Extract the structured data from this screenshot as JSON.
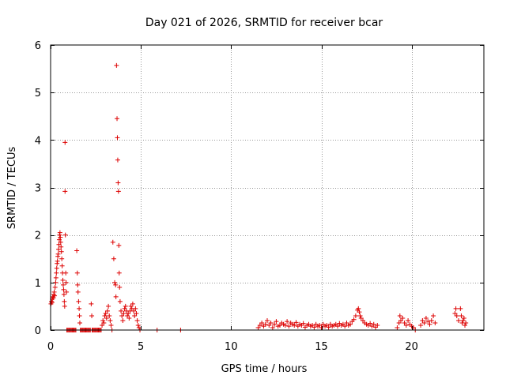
{
  "chart_data": {
    "type": "scatter",
    "title": "Day 021 of 2026, SRMTID for receiver bcar",
    "xlabel": "GPS time / hours",
    "ylabel": "SRMTID / TECUs",
    "xlim": [
      0,
      24
    ],
    "ylim": [
      0,
      6
    ],
    "xticks": [
      0,
      5,
      10,
      15,
      20
    ],
    "yticks": [
      0,
      1,
      2,
      3,
      4,
      5,
      6
    ],
    "grid": true,
    "marker": "+",
    "colors": {
      "series": "#dd0000",
      "grid": "#999999",
      "axis": "#000000"
    },
    "series": [
      {
        "name": "SRMTID",
        "points": [
          [
            0.02,
            0.55
          ],
          [
            0.05,
            0.6
          ],
          [
            0.08,
            0.58
          ],
          [
            0.1,
            0.65
          ],
          [
            0.12,
            0.7
          ],
          [
            0.15,
            0.68
          ],
          [
            0.18,
            0.75
          ],
          [
            0.2,
            0.8
          ],
          [
            0.22,
            0.72
          ],
          [
            0.25,
            0.9
          ],
          [
            0.28,
            1.0
          ],
          [
            0.3,
            1.1
          ],
          [
            0.32,
            1.2
          ],
          [
            0.34,
            1.3
          ],
          [
            0.36,
            1.4
          ],
          [
            0.38,
            1.45
          ],
          [
            0.4,
            1.55
          ],
          [
            0.42,
            1.6
          ],
          [
            0.44,
            1.7
          ],
          [
            0.46,
            1.8
          ],
          [
            0.48,
            1.9
          ],
          [
            0.5,
            2.0
          ],
          [
            0.52,
            2.05
          ],
          [
            0.54,
            1.95
          ],
          [
            0.56,
            1.85
          ],
          [
            0.58,
            1.75
          ],
          [
            0.6,
            1.65
          ],
          [
            0.62,
            1.5
          ],
          [
            0.64,
            1.35
          ],
          [
            0.66,
            1.2
          ],
          [
            0.68,
            1.05
          ],
          [
            0.7,
            0.95
          ],
          [
            0.72,
            0.85
          ],
          [
            0.74,
            0.75
          ],
          [
            0.76,
            0.6
          ],
          [
            0.78,
            0.5
          ],
          [
            0.8,
            3.95
          ],
          [
            0.8,
            2.92
          ],
          [
            0.82,
            2.0
          ],
          [
            0.84,
            1.2
          ],
          [
            0.86,
            1.0
          ],
          [
            0.88,
            0.8
          ],
          [
            0.9,
            0.0
          ],
          [
            0.95,
            0.0
          ],
          [
            1.0,
            0.0
          ],
          [
            1.05,
            0.0
          ],
          [
            1.1,
            0.0
          ],
          [
            1.15,
            0.0
          ],
          [
            1.2,
            0.0
          ],
          [
            1.25,
            0.0
          ],
          [
            1.3,
            0.0
          ],
          [
            1.35,
            0.0
          ],
          [
            1.4,
            0.0
          ],
          [
            1.45,
            1.67
          ],
          [
            1.48,
            1.2
          ],
          [
            1.5,
            0.95
          ],
          [
            1.52,
            0.8
          ],
          [
            1.55,
            0.6
          ],
          [
            1.58,
            0.45
          ],
          [
            1.6,
            0.3
          ],
          [
            1.62,
            0.15
          ],
          [
            1.65,
            0.0
          ],
          [
            1.7,
            0.0
          ],
          [
            1.75,
            0.0
          ],
          [
            1.8,
            0.0
          ],
          [
            1.85,
            0.0
          ],
          [
            1.9,
            0.0
          ],
          [
            1.95,
            0.0
          ],
          [
            2.0,
            0.0
          ],
          [
            2.05,
            0.0
          ],
          [
            2.1,
            0.0
          ],
          [
            2.15,
            0.0
          ],
          [
            2.2,
            0.0
          ],
          [
            2.25,
            0.55
          ],
          [
            2.28,
            0.3
          ],
          [
            2.3,
            0.0
          ],
          [
            2.35,
            0.0
          ],
          [
            2.4,
            0.0
          ],
          [
            2.45,
            0.0
          ],
          [
            2.5,
            0.0
          ],
          [
            2.55,
            0.0
          ],
          [
            2.6,
            0.0
          ],
          [
            2.65,
            0.0
          ],
          [
            2.7,
            0.0
          ],
          [
            2.75,
            0.0
          ],
          [
            2.8,
            0.0
          ],
          [
            2.85,
            0.1
          ],
          [
            2.9,
            0.2
          ],
          [
            2.95,
            0.15
          ],
          [
            3.0,
            0.3
          ],
          [
            3.05,
            0.35
          ],
          [
            3.1,
            0.25
          ],
          [
            3.15,
            0.4
          ],
          [
            3.2,
            0.5
          ],
          [
            3.25,
            0.3
          ],
          [
            3.3,
            0.2
          ],
          [
            3.35,
            0.1
          ],
          [
            3.4,
            0.0
          ],
          [
            3.45,
            1.85
          ],
          [
            3.5,
            1.5
          ],
          [
            3.55,
            1.0
          ],
          [
            3.6,
            0.95
          ],
          [
            3.62,
            0.7
          ],
          [
            3.65,
            5.57
          ],
          [
            3.68,
            4.45
          ],
          [
            3.7,
            4.05
          ],
          [
            3.72,
            3.58
          ],
          [
            3.74,
            3.1
          ],
          [
            3.76,
            2.92
          ],
          [
            3.78,
            1.78
          ],
          [
            3.8,
            1.2
          ],
          [
            3.82,
            0.9
          ],
          [
            3.85,
            0.6
          ],
          [
            3.9,
            0.4
          ],
          [
            3.95,
            0.3
          ],
          [
            4.0,
            0.2
          ],
          [
            4.05,
            0.35
          ],
          [
            4.1,
            0.45
          ],
          [
            4.15,
            0.5
          ],
          [
            4.2,
            0.4
          ],
          [
            4.25,
            0.3
          ],
          [
            4.3,
            0.35
          ],
          [
            4.35,
            0.25
          ],
          [
            4.4,
            0.4
          ],
          [
            4.45,
            0.5
          ],
          [
            4.5,
            0.45
          ],
          [
            4.55,
            0.55
          ],
          [
            4.6,
            0.4
          ],
          [
            4.65,
            0.3
          ],
          [
            4.7,
            0.45
          ],
          [
            4.75,
            0.35
          ],
          [
            4.8,
            0.2
          ],
          [
            4.85,
            0.1
          ],
          [
            4.9,
            0.05
          ],
          [
            4.95,
            0.0
          ],
          [
            5.9,
            0.0
          ],
          [
            7.2,
            0.0
          ],
          [
            11.5,
            0.05
          ],
          [
            11.6,
            0.1
          ],
          [
            11.7,
            0.15
          ],
          [
            11.8,
            0.08
          ],
          [
            11.9,
            0.12
          ],
          [
            12.0,
            0.2
          ],
          [
            12.1,
            0.1
          ],
          [
            12.2,
            0.15
          ],
          [
            12.3,
            0.05
          ],
          [
            12.4,
            0.12
          ],
          [
            12.5,
            0.18
          ],
          [
            12.6,
            0.08
          ],
          [
            12.7,
            0.1
          ],
          [
            12.8,
            0.15
          ],
          [
            12.9,
            0.12
          ],
          [
            13.0,
            0.1
          ],
          [
            13.1,
            0.18
          ],
          [
            13.2,
            0.08
          ],
          [
            13.3,
            0.15
          ],
          [
            13.4,
            0.12
          ],
          [
            13.5,
            0.1
          ],
          [
            13.6,
            0.16
          ],
          [
            13.7,
            0.08
          ],
          [
            13.8,
            0.12
          ],
          [
            13.9,
            0.1
          ],
          [
            14.0,
            0.14
          ],
          [
            14.1,
            0.06
          ],
          [
            14.2,
            0.1
          ],
          [
            14.3,
            0.12
          ],
          [
            14.4,
            0.08
          ],
          [
            14.5,
            0.1
          ],
          [
            14.6,
            0.06
          ],
          [
            14.7,
            0.12
          ],
          [
            14.8,
            0.08
          ],
          [
            14.9,
            0.1
          ],
          [
            15.0,
            0.05
          ],
          [
            15.1,
            0.12
          ],
          [
            15.2,
            0.08
          ],
          [
            15.3,
            0.1
          ],
          [
            15.4,
            0.06
          ],
          [
            15.5,
            0.12
          ],
          [
            15.6,
            0.08
          ],
          [
            15.7,
            0.1
          ],
          [
            15.8,
            0.12
          ],
          [
            15.9,
            0.08
          ],
          [
            16.0,
            0.14
          ],
          [
            16.1,
            0.1
          ],
          [
            16.2,
            0.12
          ],
          [
            16.3,
            0.08
          ],
          [
            16.4,
            0.15
          ],
          [
            16.5,
            0.1
          ],
          [
            16.6,
            0.12
          ],
          [
            16.7,
            0.18
          ],
          [
            16.8,
            0.22
          ],
          [
            16.9,
            0.3
          ],
          [
            17.0,
            0.42
          ],
          [
            17.05,
            0.45
          ],
          [
            17.1,
            0.38
          ],
          [
            17.15,
            0.3
          ],
          [
            17.2,
            0.25
          ],
          [
            17.3,
            0.2
          ],
          [
            17.4,
            0.15
          ],
          [
            17.5,
            0.12
          ],
          [
            17.6,
            0.1
          ],
          [
            17.7,
            0.14
          ],
          [
            17.8,
            0.08
          ],
          [
            17.9,
            0.12
          ],
          [
            18.0,
            0.06
          ],
          [
            18.1,
            0.1
          ],
          [
            19.2,
            0.05
          ],
          [
            19.3,
            0.15
          ],
          [
            19.35,
            0.3
          ],
          [
            19.4,
            0.2
          ],
          [
            19.5,
            0.25
          ],
          [
            19.6,
            0.15
          ],
          [
            19.7,
            0.1
          ],
          [
            19.8,
            0.2
          ],
          [
            19.9,
            0.12
          ],
          [
            20.0,
            0.08
          ],
          [
            20.1,
            0.05
          ],
          [
            20.2,
            0.0
          ],
          [
            20.5,
            0.1
          ],
          [
            20.6,
            0.2
          ],
          [
            20.7,
            0.15
          ],
          [
            20.8,
            0.25
          ],
          [
            20.9,
            0.18
          ],
          [
            21.0,
            0.12
          ],
          [
            21.1,
            0.2
          ],
          [
            21.2,
            0.3
          ],
          [
            21.3,
            0.15
          ],
          [
            22.4,
            0.35
          ],
          [
            22.45,
            0.45
          ],
          [
            22.5,
            0.3
          ],
          [
            22.6,
            0.2
          ],
          [
            22.7,
            0.45
          ],
          [
            22.75,
            0.3
          ],
          [
            22.8,
            0.15
          ],
          [
            22.85,
            0.2
          ],
          [
            22.9,
            0.25
          ],
          [
            22.95,
            0.1
          ],
          [
            23.0,
            0.15
          ]
        ]
      }
    ]
  }
}
